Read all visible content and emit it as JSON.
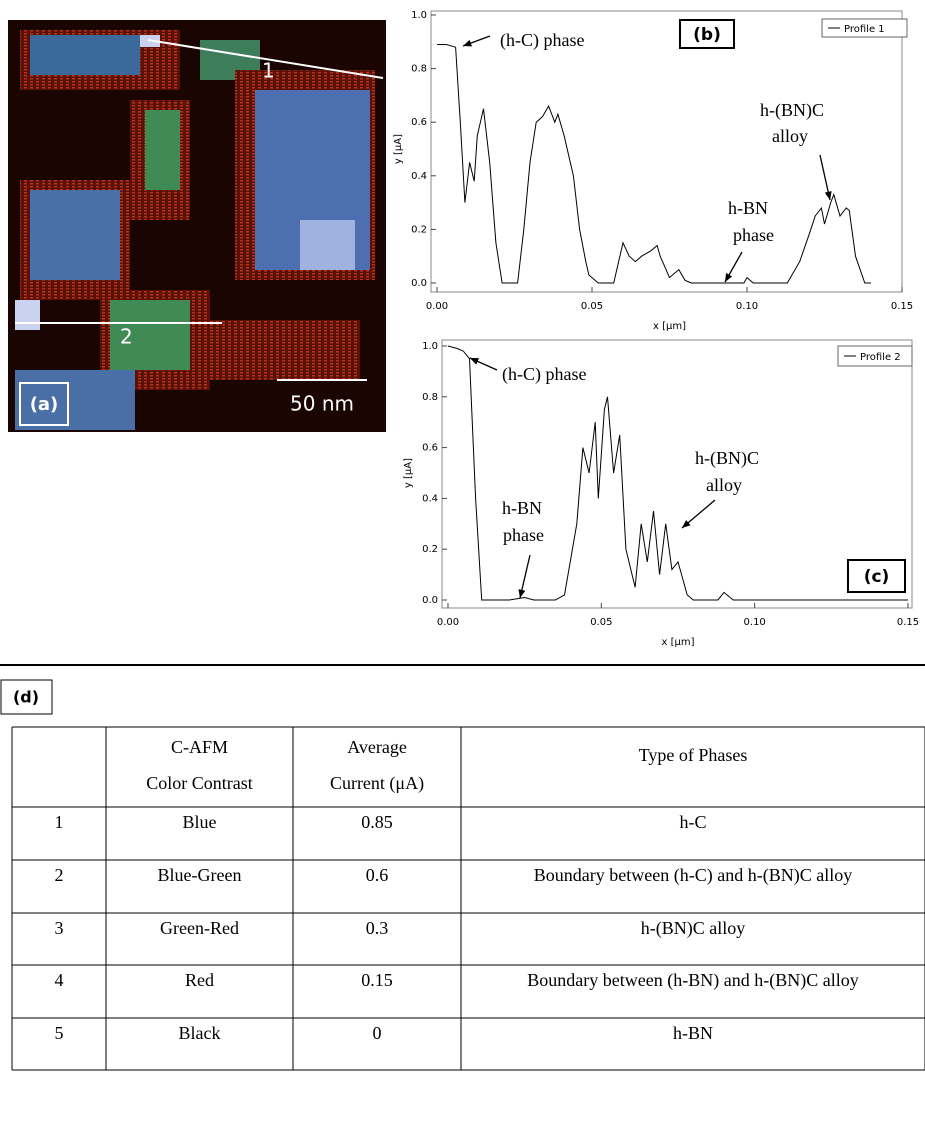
{
  "panel_a": {
    "line_labels": [
      "1",
      "2"
    ],
    "scale_bar": "50 nm",
    "label": "(a)"
  },
  "chart_data": [
    {
      "type": "line",
      "label": "(b)",
      "xlabel": "x [μm]",
      "ylabel": "y [μA]",
      "legend": "upper right",
      "x": [
        0,
        0.003,
        0.006,
        0.0075,
        0.009,
        0.0105,
        0.012,
        0.013,
        0.015,
        0.017,
        0.019,
        0.021,
        0.026,
        0.028,
        0.03,
        0.032,
        0.034,
        0.036,
        0.038,
        0.039,
        0.041,
        0.042,
        0.044,
        0.046,
        0.048,
        0.049,
        0.052,
        0.057,
        0.06,
        0.062,
        0.064,
        0.066,
        0.069,
        0.071,
        0.072,
        0.075,
        0.078,
        0.08,
        0.082,
        0.099,
        0.1,
        0.102,
        0.113,
        0.117,
        0.12,
        0.122,
        0.124,
        0.125,
        0.127,
        0.128,
        0.13,
        0.132,
        0.133,
        0.135,
        0.138,
        0.14
      ],
      "series": [
        {
          "name": "Profile 1",
          "color": "#000000",
          "values": [
            0.89,
            0.89,
            0.88,
            0.6,
            0.3,
            0.45,
            0.38,
            0.55,
            0.65,
            0.45,
            0.15,
            0,
            0,
            0.2,
            0.45,
            0.6,
            0.62,
            0.66,
            0.6,
            0.63,
            0.55,
            0.5,
            0.4,
            0.2,
            0.08,
            0.03,
            0,
            0,
            0.15,
            0.1,
            0.08,
            0.1,
            0.12,
            0.14,
            0.1,
            0.02,
            0.05,
            0.01,
            0,
            0,
            0.02,
            0,
            0,
            0.08,
            0.18,
            0.25,
            0.28,
            0.22,
            0.3,
            0.33,
            0.25,
            0.28,
            0.27,
            0.1,
            0,
            0
          ]
        }
      ],
      "xlim": [
        0,
        0.15
      ],
      "ylim": [
        0,
        1.0
      ],
      "xticks": [
        {
          "value": 0,
          "label": "0.00"
        },
        0.05,
        {
          "value": 0.1,
          "label": "0.10"
        },
        0.15
      ],
      "yticks": [
        {
          "value": 0,
          "label": "0.0"
        },
        0.2,
        0.4,
        0.6,
        0.8,
        {
          "value": 1,
          "label": "1.0"
        }
      ],
      "annotations": [
        [
          "(h-C) phase"
        ],
        [
          "h-BN",
          "phase"
        ],
        [
          "h-(BN)C",
          "alloy"
        ]
      ]
    },
    {
      "type": "line",
      "label": "(c)",
      "xlabel": "x [μm]",
      "ylabel": "y [μA]",
      "legend": "upper right",
      "x": [
        0,
        0.003,
        0.005,
        0.007,
        0.009,
        0.011,
        0.02,
        0.025,
        0.028,
        0.035,
        0.038,
        0.042,
        0.044,
        0.046,
        0.048,
        0.049,
        0.051,
        0.052,
        0.054,
        0.056,
        0.058,
        0.061,
        0.063,
        0.065,
        0.067,
        0.069,
        0.071,
        0.073,
        0.075,
        0.078,
        0.08,
        0.088,
        0.09,
        0.093,
        0.15
      ],
      "series": [
        {
          "name": "Profile 2",
          "color": "#000000",
          "values": [
            1.0,
            0.99,
            0.98,
            0.95,
            0.4,
            0,
            0,
            0.01,
            0,
            0,
            0.02,
            0.3,
            0.6,
            0.5,
            0.7,
            0.4,
            0.75,
            0.8,
            0.5,
            0.65,
            0.2,
            0.05,
            0.3,
            0.15,
            0.35,
            0.1,
            0.3,
            0.12,
            0.15,
            0.02,
            0,
            0,
            0.03,
            0,
            0
          ]
        }
      ],
      "xlim": [
        0,
        0.15
      ],
      "ylim": [
        0,
        1.0
      ],
      "xticks": [
        {
          "value": 0,
          "label": "0.00"
        },
        0.05,
        {
          "value": 0.1,
          "label": "0.10"
        },
        0.15
      ],
      "yticks": [
        {
          "value": 0,
          "label": "0.0"
        },
        0.2,
        0.4,
        0.6,
        0.8,
        {
          "value": 1,
          "label": "1.0"
        }
      ],
      "annotations": [
        [
          "(h-C) phase"
        ],
        [
          "h-BN",
          "phase"
        ],
        [
          "h-(BN)C",
          "alloy"
        ]
      ]
    }
  ],
  "table": {
    "label": "(d)",
    "header": [
      [
        "C-AFM",
        "Color Contrast"
      ],
      [
        "Average",
        "Current (μA)"
      ],
      [
        "Type of Phases"
      ]
    ],
    "rows": [
      [
        1,
        "Blue",
        0.85,
        "h-C"
      ],
      [
        2,
        "Blue-Green",
        0.6,
        "Boundary between (h-C) and h-(BN)C alloy"
      ],
      [
        3,
        "Green-Red",
        0.3,
        "h-(BN)C alloy"
      ],
      [
        4,
        "Red",
        0.15,
        "Boundary between (h-BN) and h-(BN)C alloy"
      ],
      [
        5,
        "Black",
        0,
        "h-BN"
      ]
    ]
  }
}
